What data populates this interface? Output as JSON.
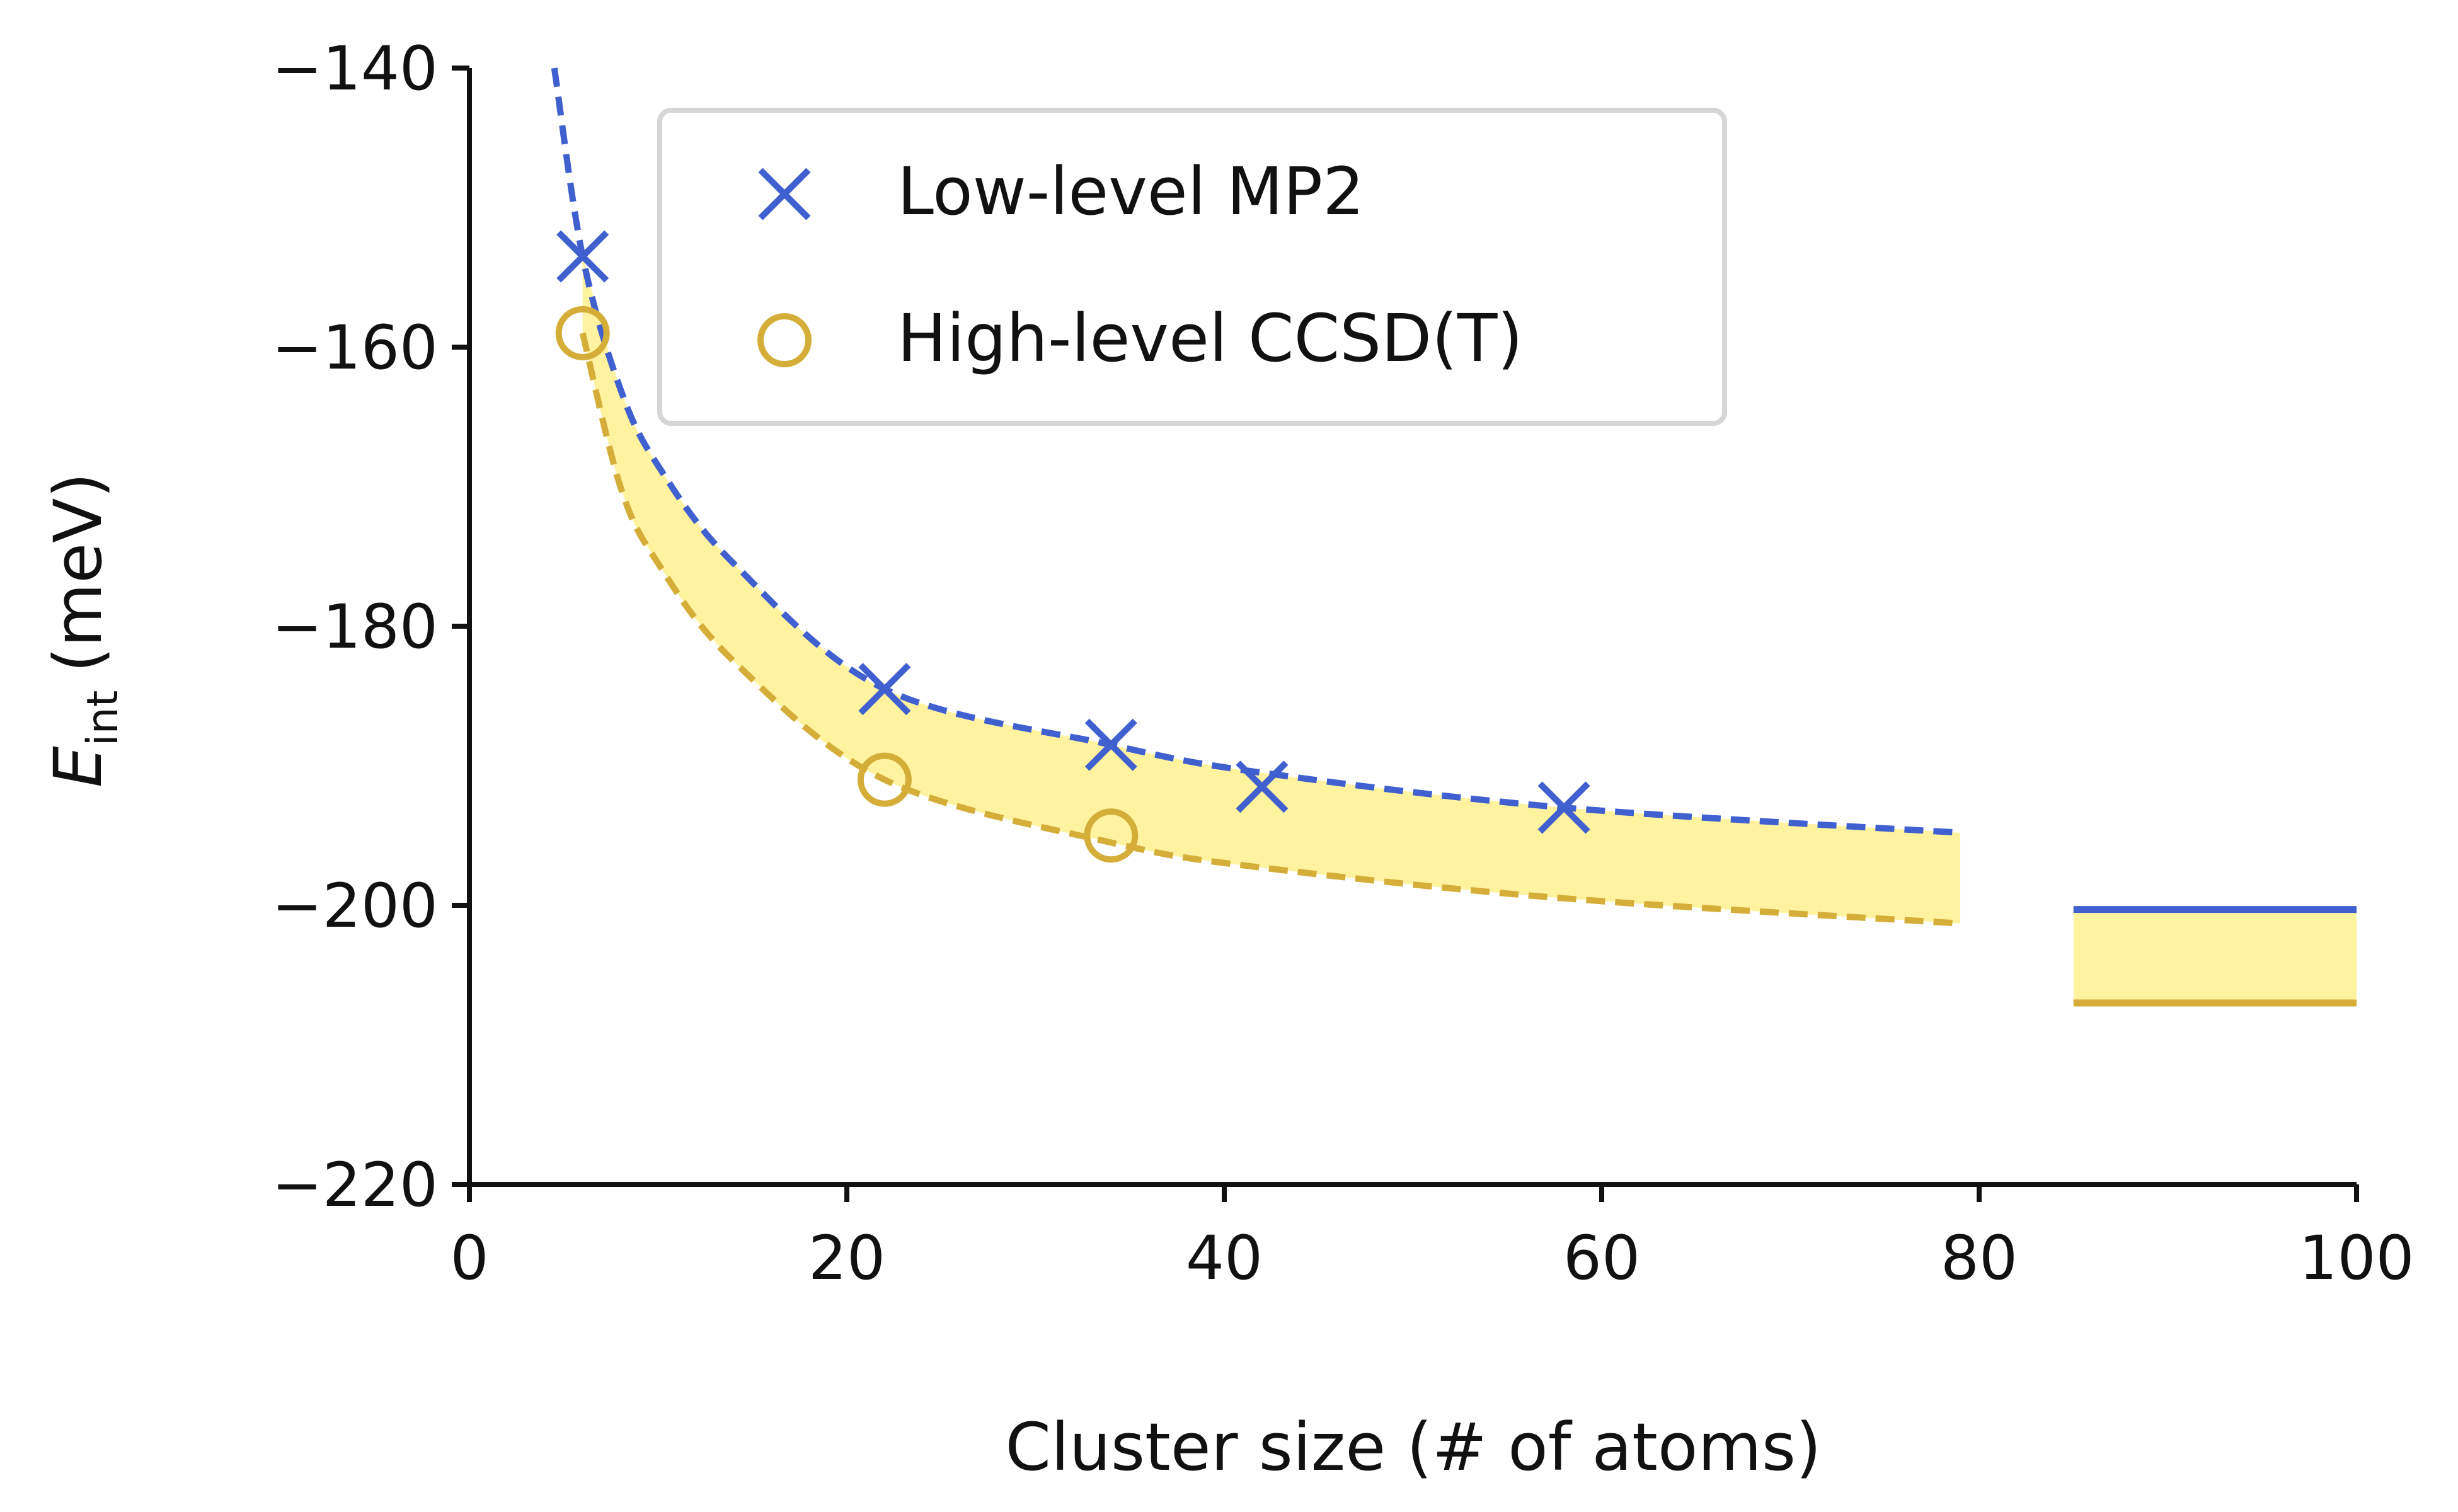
{
  "colors": {
    "mp2": "#4060d0",
    "ccsdt": "#d4ae38",
    "band": "#fff3a0",
    "axis": "#111111",
    "legend_border": "#d6d6d6"
  },
  "chart_data": {
    "type": "scatter",
    "xlabel": "Cluster size (# of atoms)",
    "ylabel_main": "E",
    "ylabel_sub": "int",
    "ylabel_unit": "(meV)",
    "xlim": [
      0,
      100
    ],
    "ylim": [
      -220,
      -140
    ],
    "xticks": [
      0,
      20,
      40,
      60,
      80,
      100
    ],
    "yticks": [
      -220,
      -200,
      -180,
      -160,
      -140
    ],
    "xtick_labels": [
      "0",
      "20",
      "40",
      "60",
      "80",
      "100"
    ],
    "ytick_labels": [
      "−220",
      "−200",
      "−180",
      "−160",
      "−140"
    ],
    "legend_placement": "top-center",
    "grid": false,
    "series": [
      {
        "name": "Low-level MP2",
        "marker": "x",
        "color_key": "mp2",
        "x": [
          6,
          22,
          34,
          42,
          58
        ],
        "y": [
          -153.5,
          -184.5,
          -188.5,
          -191.5,
          -193.0
        ]
      },
      {
        "name": "High-level CCSD(T)",
        "marker": "circle",
        "color_key": "ccsdt",
        "x": [
          6,
          22,
          34
        ],
        "y": [
          -159.0,
          -191.0,
          -195.0
        ]
      }
    ],
    "fit_curves": [
      {
        "series": "Low-level MP2",
        "style": "dashed",
        "x": [
          4.5,
          6,
          8,
          10,
          14,
          22,
          34,
          42,
          58,
          79
        ],
        "y": [
          -140.0,
          -153.5,
          -163.0,
          -168.5,
          -175.5,
          -184.5,
          -188.5,
          -190.5,
          -193.0,
          -194.8
        ]
      },
      {
        "series": "High-level CCSD(T)",
        "style": "dashed",
        "x": [
          6,
          8,
          10,
          14,
          22,
          34,
          42,
          58,
          79
        ],
        "y": [
          -159.0,
          -170.0,
          -175.5,
          -182.5,
          -191.0,
          -195.5,
          -197.3,
          -199.5,
          -201.3
        ]
      }
    ],
    "limits": [
      {
        "series": "Low-level MP2",
        "y": -200.3,
        "x_range": [
          85,
          100
        ]
      },
      {
        "series": "High-level CCSD(T)",
        "y": -207.0,
        "x_range": [
          85,
          100
        ]
      }
    ]
  }
}
